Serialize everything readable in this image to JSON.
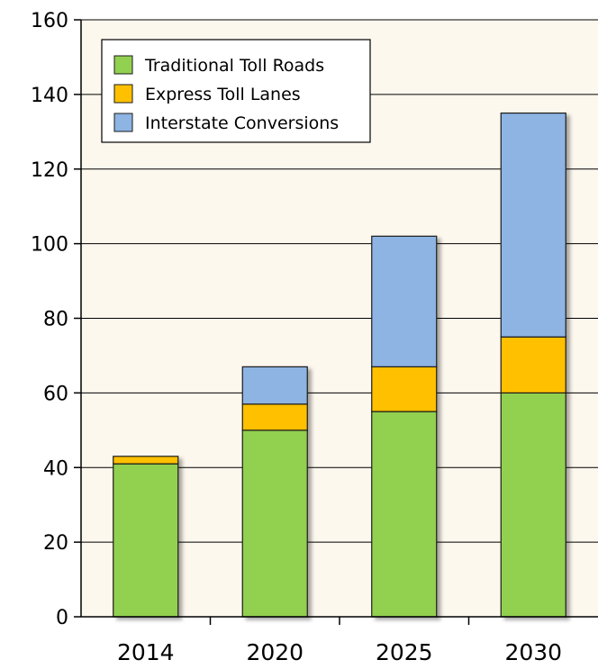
{
  "chart_data": {
    "type": "bar",
    "stacked": true,
    "categories": [
      "2014",
      "2020",
      "2025",
      "2030"
    ],
    "series": [
      {
        "name": "Traditional Toll Roads",
        "values": [
          41,
          50,
          55,
          60
        ],
        "color": "#92d050"
      },
      {
        "name": "Express Toll Lanes",
        "values": [
          2,
          7,
          12,
          15
        ],
        "color": "#ffc000"
      },
      {
        "name": "Interstate Conversions",
        "values": [
          0,
          10,
          35,
          60
        ],
        "color": "#8db4e2"
      }
    ],
    "title": "",
    "xlabel": "",
    "ylabel": "",
    "ylim": [
      0,
      160
    ],
    "yticks": [
      0,
      20,
      40,
      60,
      80,
      100,
      120,
      140,
      160
    ],
    "grid": true,
    "legend_position": "top-left",
    "plot_background": "#fdf8ee"
  }
}
